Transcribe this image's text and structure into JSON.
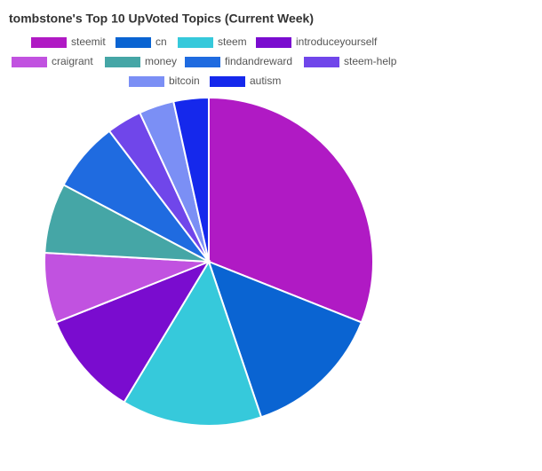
{
  "chart_data": {
    "type": "pie",
    "title": "tombstone's Top 10 UpVoted Topics (Current Week)",
    "categories": [
      "steemit",
      "cn",
      "steem",
      "introduceyourself",
      "craigrant",
      "money",
      "findandreward",
      "steem-help",
      "bitcoin",
      "autism"
    ],
    "values": [
      9,
      4,
      4,
      3,
      2,
      2,
      2,
      1,
      1,
      1
    ],
    "colors": [
      "#b01ac4",
      "#0a64d2",
      "#36c9db",
      "#7a0ccf",
      "#c152e0",
      "#45a6a6",
      "#1f6be0",
      "#7046ea",
      "#7b8ff5",
      "#1528ec"
    ],
    "legend": "top"
  }
}
